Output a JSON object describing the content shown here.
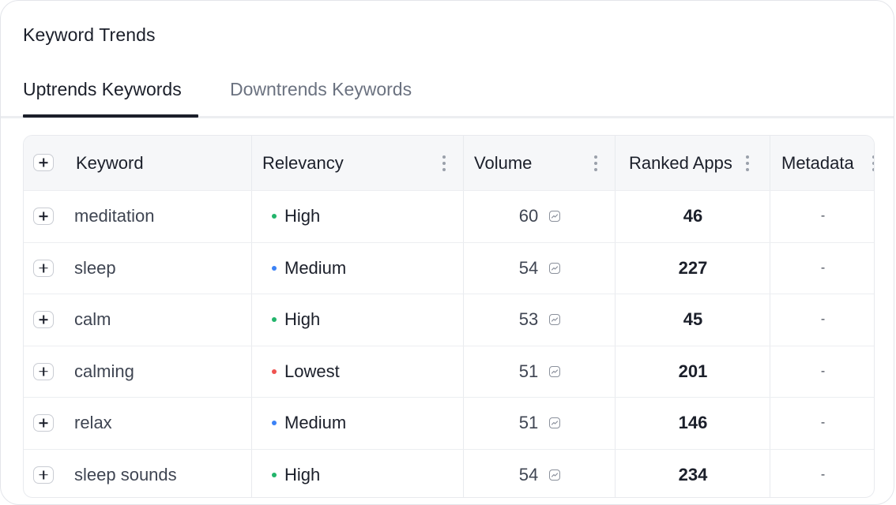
{
  "card": {
    "title": "Keyword Trends"
  },
  "tabs": [
    {
      "label": "Uptrends Keywords",
      "active": true
    },
    {
      "label": "Downtrends Keywords",
      "active": false
    }
  ],
  "table": {
    "columns": [
      "Keyword",
      "Relevancy",
      "Volume",
      "Ranked Apps",
      "Metadata"
    ],
    "rows": [
      {
        "keyword": "meditation",
        "relevancy": "High",
        "relevancy_color": "#22b46b",
        "volume": "60",
        "ranked_apps": "46",
        "metadata": "-"
      },
      {
        "keyword": "sleep",
        "relevancy": "Medium",
        "relevancy_color": "#3b82f6",
        "volume": "54",
        "ranked_apps": "227",
        "metadata": "-"
      },
      {
        "keyword": "calm",
        "relevancy": "High",
        "relevancy_color": "#22b46b",
        "volume": "53",
        "ranked_apps": "45",
        "metadata": "-"
      },
      {
        "keyword": "calming",
        "relevancy": "Lowest",
        "relevancy_color": "#ef5350",
        "volume": "51",
        "ranked_apps": "201",
        "metadata": "-"
      },
      {
        "keyword": "relax",
        "relevancy": "Medium",
        "relevancy_color": "#3b82f6",
        "volume": "51",
        "ranked_apps": "146",
        "metadata": "-"
      },
      {
        "keyword": "sleep sounds",
        "relevancy": "High",
        "relevancy_color": "#22b46b",
        "volume": "54",
        "ranked_apps": "234",
        "metadata": "-"
      }
    ]
  },
  "icons": {
    "add": "plus-icon",
    "column_menu": "kebab-icon",
    "volume_trend": "trend-chart-icon"
  }
}
